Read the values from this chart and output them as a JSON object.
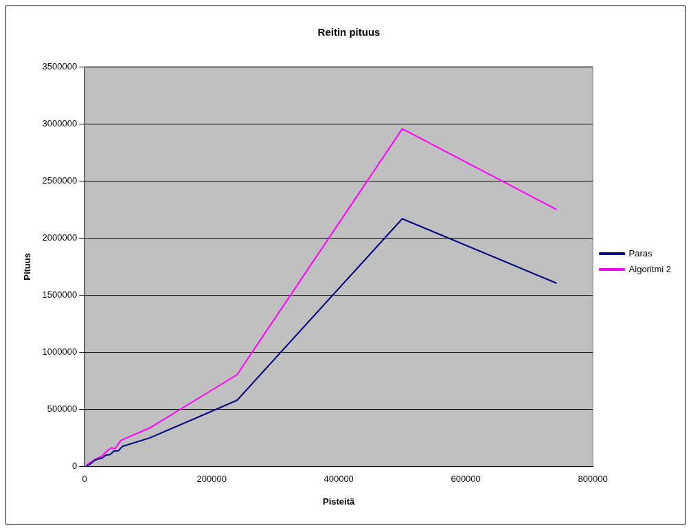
{
  "chart_data": {
    "type": "line",
    "title": "Reitin pituus",
    "xlabel": "Pisteitä",
    "ylabel": "Pituus",
    "xlim": [
      0,
      800000
    ],
    "xticks": [
      0,
      200000,
      400000,
      600000,
      800000
    ],
    "ylim": [
      0,
      3500000
    ],
    "yticks": [
      0,
      500000,
      1000000,
      1500000,
      2000000,
      2500000,
      3000000,
      3500000
    ],
    "grid": "y",
    "legend": "right",
    "marker": "none",
    "line_style": "solid",
    "series": [
      {
        "name": "Paras",
        "color": "#000080",
        "x": [
          2000,
          6000,
          17000,
          28000,
          33000,
          40000,
          46000,
          53000,
          59000,
          103000,
          240000,
          500000,
          743000
        ],
        "values": [
          0,
          11000,
          59000,
          77000,
          99000,
          105000,
          136000,
          138000,
          176000,
          252000,
          581000,
          2169000,
          1605000
        ]
      },
      {
        "name": "Algoritmi 2",
        "color": "#ff00ff",
        "x": [
          2000,
          17000,
          26000,
          35000,
          41600,
          48000,
          57000,
          103000,
          240000,
          500000,
          743000
        ],
        "values": [
          11000,
          66000,
          88000,
          136000,
          164000,
          158000,
          230000,
          340000,
          805000,
          2956000,
          2250000
        ]
      }
    ]
  }
}
